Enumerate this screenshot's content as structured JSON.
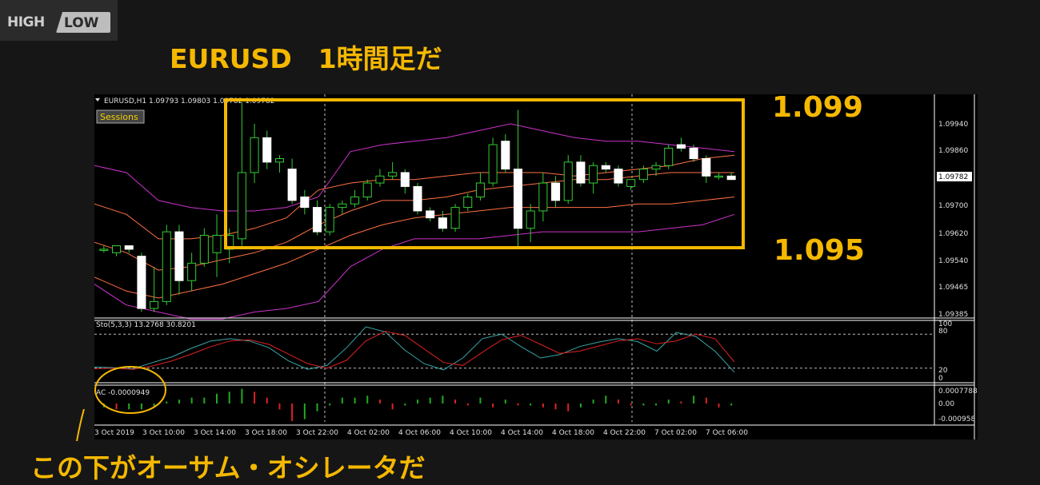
{
  "logo": {
    "high": "HIGH",
    "low": "LOW"
  },
  "slide_title": "EURUSD　1時間足だ",
  "bottom_note": "この下がオーサム・オシレータだ",
  "annotations": {
    "top_price": "1.099",
    "bottom_price": "1.095"
  },
  "colors": {
    "highlight": "#f5b800",
    "bb_outer": "#cc33cc",
    "bb_mid": "#ff7043",
    "candle_up": "#000000",
    "candle_down": "#ffffff",
    "wick": "#33cc33",
    "stoch_main": "#3aa6a6",
    "stoch_signal": "#dd2222",
    "ac_up": "#22aa22",
    "ac_down": "#dd2222"
  },
  "main_chart": {
    "header": "EURUSD,H1  1.09793 1.09803 1.09782 1.09782",
    "sessions_label": "Sessions",
    "price_ticks": [
      "1.09940",
      "1.09860",
      "1.09700",
      "1.09620",
      "1.09540",
      "1.09465",
      "1.09385"
    ],
    "current_price": "1.09782"
  },
  "stoch_panel": {
    "header": "Sto(5,3,3) 13.2768 30.8201",
    "ticks": [
      "100",
      "80",
      "20",
      "0"
    ]
  },
  "ac_panel": {
    "header": "AC -0.0000949",
    "ticks": [
      "0.0007788",
      "0.00",
      "-0.000958"
    ]
  },
  "time_axis": [
    "3 Oct 2019",
    "3 Oct 10:00",
    "3 Oct 14:00",
    "3 Oct 18:00",
    "3 Oct 22:00",
    "4 Oct 02:00",
    "4 Oct 06:00",
    "4 Oct 10:00",
    "4 Oct 14:00",
    "4 Oct 18:00",
    "4 Oct 22:00",
    "7 Oct 02:00",
    "7 Oct 06:00"
  ],
  "chart_data": {
    "type": "candlestick",
    "symbol": "EURUSD",
    "timeframe": "H1",
    "ylim": [
      1.09385,
      1.1002
    ],
    "candles": [
      {
        "o": 1.0958,
        "h": 1.0959,
        "l": 1.0957,
        "c": 1.0958
      },
      {
        "o": 1.0957,
        "h": 1.0959,
        "l": 1.0956,
        "c": 1.0959
      },
      {
        "o": 1.0959,
        "h": 1.0959,
        "l": 1.0957,
        "c": 1.0958
      },
      {
        "o": 1.0956,
        "h": 1.0957,
        "l": 1.094,
        "c": 1.0941
      },
      {
        "o": 1.0941,
        "h": 1.0953,
        "l": 1.094,
        "c": 1.0943
      },
      {
        "o": 1.0943,
        "h": 1.0965,
        "l": 1.0942,
        "c": 1.0963
      },
      {
        "o": 1.0963,
        "h": 1.0965,
        "l": 1.0945,
        "c": 1.0949
      },
      {
        "o": 1.0949,
        "h": 1.0957,
        "l": 1.0946,
        "c": 1.0954
      },
      {
        "o": 1.0954,
        "h": 1.0964,
        "l": 1.0953,
        "c": 1.0962
      },
      {
        "o": 1.0957,
        "h": 1.0968,
        "l": 1.095,
        "c": 1.0962
      },
      {
        "o": 1.0958,
        "h": 1.0964,
        "l": 1.0954,
        "c": 1.0962
      },
      {
        "o": 1.0961,
        "h": 1.1,
        "l": 1.0959,
        "c": 1.098
      },
      {
        "o": 1.098,
        "h": 1.0994,
        "l": 1.0977,
        "c": 1.099
      },
      {
        "o": 1.099,
        "h": 1.0992,
        "l": 1.0981,
        "c": 1.0983
      },
      {
        "o": 1.0983,
        "h": 1.0985,
        "l": 1.098,
        "c": 1.0984
      },
      {
        "o": 1.0981,
        "h": 1.0984,
        "l": 1.0971,
        "c": 1.0972
      },
      {
        "o": 1.0973,
        "h": 1.0975,
        "l": 1.0968,
        "c": 1.097
      },
      {
        "o": 1.097,
        "h": 1.0972,
        "l": 1.0962,
        "c": 1.0963
      },
      {
        "o": 1.0963,
        "h": 1.0971,
        "l": 1.0962,
        "c": 1.097
      },
      {
        "o": 1.097,
        "h": 1.0972,
        "l": 1.0968,
        "c": 1.0971
      },
      {
        "o": 1.0971,
        "h": 1.0975,
        "l": 1.097,
        "c": 1.0973
      },
      {
        "o": 1.0973,
        "h": 1.0978,
        "l": 1.0972,
        "c": 1.0977
      },
      {
        "o": 1.0977,
        "h": 1.0981,
        "l": 1.0976,
        "c": 1.0979
      },
      {
        "o": 1.0979,
        "h": 1.0983,
        "l": 1.0978,
        "c": 1.098
      },
      {
        "o": 1.098,
        "h": 1.0981,
        "l": 1.0974,
        "c": 1.0976
      },
      {
        "o": 1.0976,
        "h": 1.0977,
        "l": 1.0968,
        "c": 1.0969
      },
      {
        "o": 1.0969,
        "h": 1.097,
        "l": 1.0966,
        "c": 1.0967
      },
      {
        "o": 1.0967,
        "h": 1.0969,
        "l": 1.0963,
        "c": 1.0964
      },
      {
        "o": 1.0964,
        "h": 1.0971,
        "l": 1.0963,
        "c": 1.097
      },
      {
        "o": 1.097,
        "h": 1.0974,
        "l": 1.0969,
        "c": 1.0973
      },
      {
        "o": 1.0973,
        "h": 1.098,
        "l": 1.0972,
        "c": 1.0977
      },
      {
        "o": 1.0977,
        "h": 1.099,
        "l": 1.0976,
        "c": 1.0988
      },
      {
        "o": 1.0989,
        "h": 1.0991,
        "l": 1.098,
        "c": 1.0981
      },
      {
        "o": 1.0981,
        "h": 1.0998,
        "l": 1.0958,
        "c": 1.0964
      },
      {
        "o": 1.0964,
        "h": 1.0971,
        "l": 1.096,
        "c": 1.0969
      },
      {
        "o": 1.0969,
        "h": 1.098,
        "l": 1.0966,
        "c": 1.0977
      },
      {
        "o": 1.0977,
        "h": 1.0979,
        "l": 1.097,
        "c": 1.0972
      },
      {
        "o": 1.0972,
        "h": 1.0985,
        "l": 1.0971,
        "c": 1.0983
      },
      {
        "o": 1.0983,
        "h": 1.0985,
        "l": 1.0976,
        "c": 1.0977
      },
      {
        "o": 1.0977,
        "h": 1.0983,
        "l": 1.0974,
        "c": 1.0982
      },
      {
        "o": 1.0982,
        "h": 1.0983,
        "l": 1.098,
        "c": 1.0981
      },
      {
        "o": 1.0981,
        "h": 1.0982,
        "l": 1.0976,
        "c": 1.0977
      },
      {
        "o": 1.0976,
        "h": 1.0978,
        "l": 1.0975,
        "c": 1.0978
      },
      {
        "o": 1.0978,
        "h": 1.0982,
        "l": 1.0977,
        "c": 1.0981
      },
      {
        "o": 1.0981,
        "h": 1.0983,
        "l": 1.0979,
        "c": 1.0982
      },
      {
        "o": 1.0982,
        "h": 1.0988,
        "l": 1.0981,
        "c": 1.0987
      },
      {
        "o": 1.0988,
        "h": 1.099,
        "l": 1.0986,
        "c": 1.0987
      },
      {
        "o": 1.0987,
        "h": 1.0988,
        "l": 1.0983,
        "c": 1.0984
      },
      {
        "o": 1.0984,
        "h": 1.0985,
        "l": 1.0977,
        "c": 1.0979
      },
      {
        "o": 1.0979,
        "h": 1.098,
        "l": 1.0978,
        "c": 1.0979
      },
      {
        "o": 1.0979,
        "h": 1.098,
        "l": 1.0978,
        "c": 1.0978
      }
    ],
    "bollinger_upper_outer": [
      1.0982,
      1.098,
      1.0972,
      1.097,
      1.0969,
      1.0969,
      1.097,
      1.0973,
      1.0986,
      1.0988,
      1.0989,
      1.099,
      1.0992,
      1.0994,
      1.0992,
      1.099,
      1.0989,
      1.0989,
      1.0988,
      1.0987,
      1.0986
    ],
    "bollinger_upper_inner": [
      1.0971,
      1.0968,
      1.0961,
      1.0961,
      1.0962,
      1.0964,
      1.0967,
      1.0975,
      1.0977,
      1.0978,
      1.0978,
      1.0979,
      1.098,
      1.098,
      1.098,
      1.0979,
      1.098,
      1.0981,
      1.0982,
      1.0984,
      1.0985
    ],
    "bollinger_middle": [
      1.096,
      1.0957,
      1.0952,
      1.0953,
      1.0955,
      1.0957,
      1.096,
      1.0965,
      1.0969,
      1.0972,
      1.0972,
      1.0973,
      1.0975,
      1.0976,
      1.0977,
      1.0978,
      1.0978,
      1.0979,
      1.098,
      1.098,
      1.098
    ],
    "bollinger_lower_inner": [
      1.095,
      1.0946,
      1.0944,
      1.0946,
      1.0948,
      1.0951,
      1.0954,
      1.0958,
      1.0962,
      1.0965,
      1.0967,
      1.0968,
      1.0969,
      1.097,
      1.097,
      1.097,
      1.097,
      1.0971,
      1.0971,
      1.0972,
      1.0973
    ],
    "bollinger_lower_outer": [
      1.0948,
      1.0942,
      1.094,
      1.0938,
      1.0938,
      1.094,
      1.0941,
      1.0943,
      1.0953,
      1.0958,
      1.0961,
      1.0961,
      1.0961,
      1.0962,
      1.0963,
      1.0963,
      1.0963,
      1.0963,
      1.0964,
      1.0965,
      1.0968
    ],
    "stochastic_main": [
      22,
      21,
      19,
      30,
      40,
      55,
      68,
      72,
      68,
      56,
      33,
      18,
      25,
      56,
      93,
      84,
      52,
      28,
      17,
      38,
      72,
      80,
      58,
      38,
      44,
      58,
      66,
      72,
      67,
      50,
      83,
      76,
      50,
      13
    ],
    "stochastic_signal": [
      19,
      20,
      18,
      24,
      33,
      45,
      58,
      68,
      70,
      62,
      45,
      28,
      20,
      34,
      68,
      85,
      78,
      54,
      30,
      25,
      48,
      70,
      78,
      62,
      46,
      50,
      59,
      68,
      72,
      63,
      68,
      80,
      72,
      31
    ],
    "ac_values": [
      -0.0002,
      -0.0003,
      -0.0003,
      -0.0003,
      -0.0002,
      0.0001,
      0.0002,
      0.0003,
      0.0003,
      0.0005,
      0.0006,
      0.00075,
      0.0006,
      0.0003,
      -0.0003,
      -0.0009,
      -0.0008,
      -0.0004,
      -0.0001,
      0.0003,
      0.0003,
      0.0004,
      0.0002,
      -0.0003,
      -0.0001,
      0.0002,
      0.0003,
      0.0004,
      0.0002,
      -0.0001,
      0.0003,
      -0.0002,
      0.0002,
      -0.0001,
      -0.0001,
      -0.0002,
      -0.0003,
      -0.0004,
      -0.0002,
      0.0002,
      0.0004,
      0.0002,
      -0.0001,
      -0.0001,
      -0.0001,
      0.0002,
      0.0001,
      0.0004,
      0.0003,
      -0.0002,
      -0.0001
    ]
  }
}
